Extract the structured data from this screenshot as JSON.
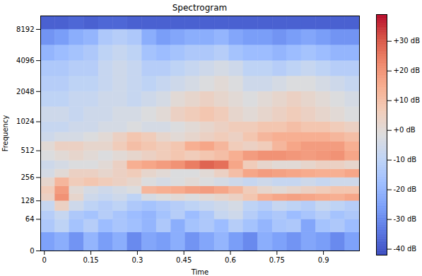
{
  "chart_data": {
    "type": "heatmap",
    "title": "Spectrogram",
    "x_label": "Time",
    "y_label": "Frequency",
    "log": "y",
    "xlim": [
      -0.012,
      1.016
    ],
    "xticks": [
      0,
      0.15,
      0.3,
      0.45,
      0.6,
      0.75,
      0.9
    ],
    "ylim": [
      0,
      11025
    ],
    "yticks": [
      0,
      64,
      128,
      256,
      512,
      1024,
      2048,
      4096,
      8192
    ],
    "time_bins": [
      -0.012,
      0.035,
      0.081,
      0.128,
      0.175,
      0.222,
      0.268,
      0.315,
      0.362,
      0.409,
      0.455,
      0.502,
      0.549,
      0.596,
      0.642,
      0.689,
      0.736,
      0.783,
      0.829,
      0.876,
      0.923,
      0.97,
      1.016
    ],
    "frequency_bins": [
      0,
      32,
      64,
      90,
      128,
      160,
      200,
      256,
      320,
      400,
      512,
      640,
      800,
      1024,
      1450,
      2048,
      2900,
      4096,
      5800,
      8192,
      11025
    ],
    "cells": [
      [
        -25,
        -22,
        -28,
        -20,
        -26,
        -22,
        -30,
        -24,
        -26,
        -22,
        -28,
        -24,
        -20,
        -26,
        -30,
        -22,
        -25,
        -28,
        -24,
        -26,
        -30,
        -25
      ],
      [
        -14,
        -10,
        -16,
        -12,
        -18,
        -15,
        -17,
        -20,
        -14,
        -22,
        -16,
        -14,
        -18,
        -12,
        -16,
        -20,
        -15,
        -14,
        -24,
        -16,
        -14,
        -18
      ],
      [
        -12,
        -8,
        -14,
        -16,
        -12,
        -15,
        -18,
        -20,
        -16,
        -12,
        -18,
        -14,
        -8,
        -6,
        -12,
        -16,
        -14,
        -18,
        -15,
        -12,
        -16,
        -14
      ],
      [
        -8,
        4,
        -6,
        -10,
        -12,
        -10,
        -14,
        -16,
        -14,
        -12,
        -10,
        -8,
        -6,
        -4,
        -10,
        -12,
        -8,
        -10,
        -12,
        -8,
        -10,
        -12
      ],
      [
        4,
        20,
        2,
        -6,
        -8,
        -6,
        -10,
        -4,
        -2,
        0,
        -2,
        0,
        2,
        4,
        8,
        14,
        16,
        17,
        16,
        15,
        14,
        16
      ],
      [
        6,
        18,
        0,
        -4,
        -6,
        -4,
        -2,
        12,
        14,
        15,
        17,
        18,
        16,
        12,
        6,
        2,
        0,
        2,
        4,
        6,
        8,
        8
      ],
      [
        2,
        12,
        6,
        8,
        6,
        4,
        2,
        -2,
        -4,
        -2,
        0,
        -2,
        -4,
        -6,
        -8,
        -6,
        -8,
        -8,
        -6,
        -8,
        -6,
        -6
      ],
      [
        -4,
        0,
        4,
        4,
        2,
        4,
        6,
        2,
        0,
        -2,
        -2,
        0,
        4,
        10,
        16,
        18,
        17,
        16,
        15,
        14,
        14,
        16
      ],
      [
        -6,
        -4,
        -2,
        -2,
        0,
        4,
        14,
        16,
        18,
        20,
        24,
        28,
        26,
        16,
        6,
        2,
        0,
        0,
        2,
        4,
        4,
        2
      ],
      [
        -2,
        0,
        2,
        0,
        -2,
        0,
        2,
        4,
        6,
        8,
        6,
        8,
        10,
        14,
        18,
        20,
        20,
        19,
        18,
        19,
        20,
        16
      ],
      [
        0,
        4,
        4,
        2,
        2,
        6,
        10,
        8,
        6,
        8,
        14,
        16,
        12,
        6,
        4,
        6,
        12,
        16,
        18,
        18,
        18,
        14
      ],
      [
        -6,
        -4,
        -4,
        -2,
        0,
        4,
        8,
        6,
        2,
        0,
        2,
        4,
        6,
        4,
        8,
        12,
        14,
        14,
        14,
        14,
        12,
        10
      ],
      [
        -8,
        -8,
        -6,
        -6,
        -4,
        -4,
        -2,
        -4,
        -4,
        -2,
        0,
        2,
        4,
        6,
        6,
        8,
        8,
        10,
        8,
        8,
        6,
        4
      ],
      [
        -6,
        -6,
        -8,
        -6,
        -6,
        -4,
        -4,
        -2,
        0,
        4,
        6,
        8,
        6,
        2,
        0,
        2,
        4,
        6,
        4,
        2,
        0,
        -2
      ],
      [
        -10,
        -10,
        -8,
        -8,
        -6,
        -6,
        -8,
        -6,
        -4,
        0,
        2,
        4,
        2,
        0,
        -2,
        0,
        2,
        4,
        2,
        0,
        -2,
        -4
      ],
      [
        -12,
        -12,
        -10,
        -10,
        -8,
        -6,
        -8,
        -10,
        -8,
        -6,
        -4,
        -2,
        0,
        -2,
        -6,
        -6,
        -4,
        -2,
        -2,
        -4,
        -6,
        -8
      ],
      [
        -14,
        -14,
        -12,
        -12,
        -8,
        -6,
        -8,
        -12,
        -12,
        -10,
        -8,
        -6,
        -4,
        -6,
        -10,
        -10,
        -12,
        -10,
        -8,
        -10,
        -12,
        -12
      ],
      [
        -20,
        -18,
        -16,
        -14,
        -10,
        -8,
        -10,
        -16,
        -18,
        -16,
        -14,
        -14,
        -12,
        -16,
        -18,
        -18,
        -20,
        -18,
        -16,
        -18,
        -20,
        -20
      ],
      [
        -28,
        -26,
        -22,
        -20,
        -14,
        -12,
        -14,
        -22,
        -26,
        -24,
        -22,
        -22,
        -20,
        -24,
        -26,
        -26,
        -28,
        -26,
        -24,
        -26,
        -28,
        -28
      ],
      [
        -38,
        -38,
        -37,
        -38,
        -37,
        -37,
        -38,
        -38,
        -38,
        -38,
        -38,
        -38,
        -38,
        -38,
        -38,
        -38,
        -38,
        -38,
        -38,
        -38,
        -38,
        -38
      ]
    ],
    "colorbar": {
      "range": [
        -42,
        39
      ],
      "ticks": [
        {
          "value": 30,
          "label": "+30 dB"
        },
        {
          "value": 20,
          "label": "+20 dB"
        },
        {
          "value": 10,
          "label": "+10 dB"
        },
        {
          "value": 0,
          "label": "+0 dB"
        },
        {
          "value": -10,
          "label": "-10 dB"
        },
        {
          "value": -20,
          "label": "-20 dB"
        },
        {
          "value": -30,
          "label": "-30 dB"
        },
        {
          "value": -40,
          "label": "-40 dB"
        }
      ]
    }
  }
}
